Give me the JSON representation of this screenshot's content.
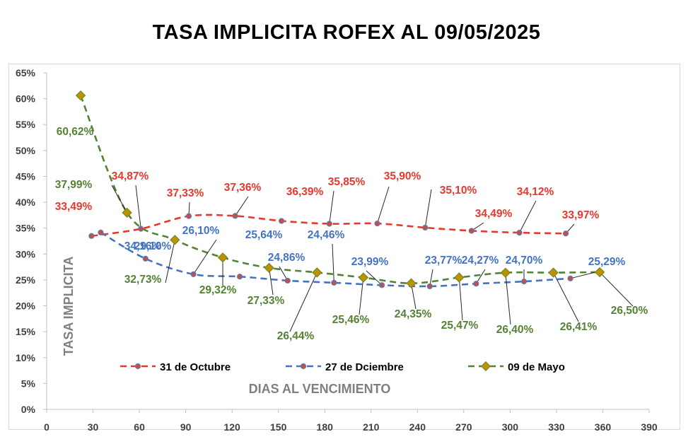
{
  "chart_data": {
    "type": "line",
    "title": "TASA IMPLICITA ROFEX AL 09/05/2025",
    "xlabel": "DIAS AL VENCIMIENTO",
    "ylabel": "TASA IMPLICITA",
    "xlim": [
      0,
      390
    ],
    "ylim": [
      0,
      65
    ],
    "x_ticks": [
      "0",
      "30",
      "60",
      "90",
      "120",
      "150",
      "180",
      "210",
      "240",
      "270",
      "300",
      "330",
      "360",
      "390"
    ],
    "y_ticks": [
      "0%",
      "5%",
      "10%",
      "15%",
      "20%",
      "25%",
      "30%",
      "35%",
      "40%",
      "45%",
      "50%",
      "55%",
      "60%",
      "65%"
    ],
    "grid": false,
    "legend_position": "bottom",
    "series": [
      {
        "name": "31 de Octubre",
        "color": "#e8382d",
        "x": [
          29,
          61,
          92,
          122,
          152,
          183,
          214,
          245,
          275,
          306,
          336
        ],
        "y": [
          33.49,
          34.87,
          37.33,
          37.36,
          36.39,
          35.85,
          35.9,
          35.1,
          34.49,
          34.12,
          33.97
        ],
        "labels": [
          "33,49%",
          "34,87%",
          "37,33%",
          "37,36%",
          "36,39%",
          "35,85%",
          "35,90%",
          "35,10%",
          "34,49%",
          "34,12%",
          "33,97%"
        ]
      },
      {
        "name": "27 de Dciembre",
        "color": "#4472c4",
        "x": [
          35,
          64,
          95,
          125,
          156,
          186,
          217,
          248,
          278,
          309,
          339
        ],
        "y": [
          34.16,
          29.1,
          26.1,
          25.64,
          24.86,
          24.46,
          23.99,
          23.77,
          24.27,
          24.7,
          25.29
        ],
        "labels": [
          "34,16%",
          "29,10%",
          "26,10%",
          "25,64%",
          "24,86%",
          "24,46%",
          "23,99%",
          "23,77%",
          "24,27%",
          "24,70%",
          "25,29%"
        ]
      },
      {
        "name": "09 de Mayo",
        "color": "#548235",
        "x": [
          22,
          52,
          83,
          114,
          144,
          175,
          205,
          236,
          267,
          297,
          328,
          358
        ],
        "y": [
          60.62,
          37.99,
          32.73,
          29.32,
          27.33,
          26.44,
          25.46,
          24.35,
          25.47,
          26.4,
          26.41,
          26.5
        ],
        "labels": [
          "60,62%",
          "37,99%",
          "32,73%",
          "29,32%",
          "27,33%",
          "26,44%",
          "25,46%",
          "24,35%",
          "25,47%",
          "26,40%",
          "26,41%",
          "26,50%"
        ]
      }
    ]
  }
}
